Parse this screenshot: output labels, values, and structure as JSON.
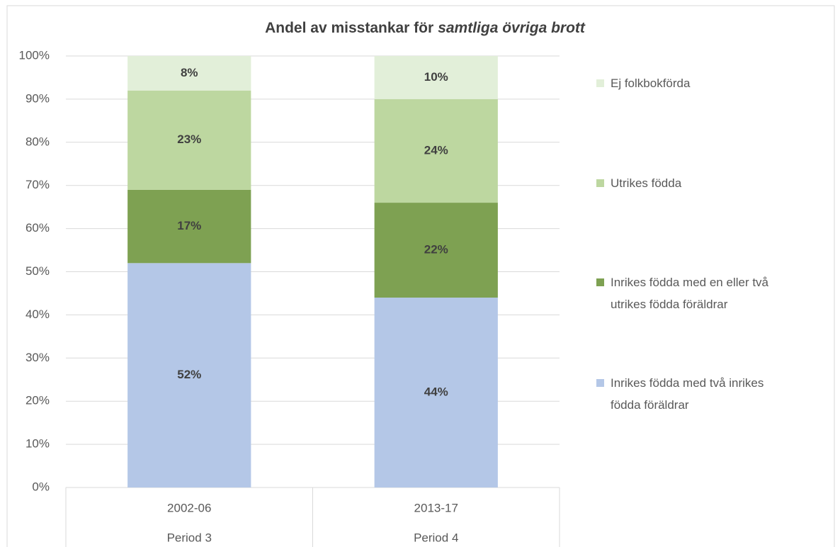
{
  "chart_data": {
    "type": "stacked_bar",
    "title": [
      "Andel av misstankar för",
      "samtliga övriga brott"
    ],
    "categories": [
      "2002-06",
      "2013-17"
    ],
    "category_groups": [
      "Period 3",
      "Period 4"
    ],
    "series": [
      {
        "name": "Inrikes födda med två inrikes födda föräldrar",
        "color": "#b4c7e7",
        "values": [
          52,
          44
        ],
        "value_labels": [
          "52%",
          "44%"
        ]
      },
      {
        "name": "Inrikes födda med en eller två utrikes födda föräldrar",
        "color": "#7ea152",
        "values": [
          17,
          22
        ],
        "value_labels": [
          "17%",
          "22%"
        ]
      },
      {
        "name": "Utrikes födda",
        "color": "#bdd7a0",
        "values": [
          23,
          24
        ],
        "value_labels": [
          "23%",
          "24%"
        ]
      },
      {
        "name": "Ej folkbokförda",
        "color": "#e2efd9",
        "values": [
          8,
          10
        ],
        "value_labels": [
          "8%",
          "10%"
        ]
      }
    ],
    "ylim": [
      0,
      100
    ],
    "yticks": [
      {
        "value": 0,
        "label": "0%"
      },
      {
        "value": 10,
        "label": "10%"
      },
      {
        "value": 20,
        "label": "20%"
      },
      {
        "value": 30,
        "label": "30%"
      },
      {
        "value": 40,
        "label": "40%"
      },
      {
        "value": 50,
        "label": "50%"
      },
      {
        "value": 60,
        "label": "60%"
      },
      {
        "value": 70,
        "label": "70%"
      },
      {
        "value": 80,
        "label": "80%"
      },
      {
        "value": 90,
        "label": "90%"
      },
      {
        "value": 100,
        "label": "100%"
      }
    ],
    "grid": true,
    "legend": "right"
  }
}
